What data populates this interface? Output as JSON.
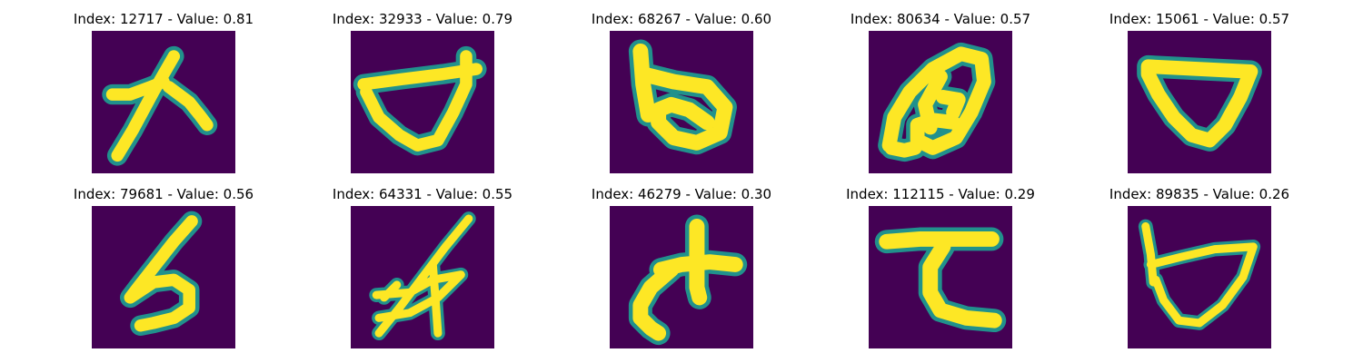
{
  "chart_data": {
    "type": "image_grid",
    "colormap": "viridis",
    "colors": {
      "background": "#440154",
      "stroke_edge": "#21918c",
      "stroke_core": "#fde725"
    },
    "grid": {
      "rows": 2,
      "columns": 5
    },
    "panels": [
      {
        "title": "Index: 12717 - Value: 0.81",
        "index": 12717,
        "value": 0.81
      },
      {
        "title": "Index: 32933 - Value: 0.79",
        "index": 32933,
        "value": 0.79
      },
      {
        "title": "Index: 68267 - Value: 0.60",
        "index": 68267,
        "value": 0.6
      },
      {
        "title": "Index: 80634 - Value: 0.57",
        "index": 80634,
        "value": 0.57
      },
      {
        "title": "Index: 15061 - Value: 0.57",
        "index": 15061,
        "value": 0.57
      },
      {
        "title": "Index: 79681 - Value: 0.56",
        "index": 79681,
        "value": 0.56
      },
      {
        "title": "Index: 64331 - Value: 0.55",
        "index": 64331,
        "value": 0.55
      },
      {
        "title": "Index: 46279 - Value: 0.30",
        "index": 46279,
        "value": 0.3
      },
      {
        "title": "Index: 112115 - Value: 0.29",
        "index": 112115,
        "value": 0.29
      },
      {
        "title": "Index: 89835 - Value: 0.26",
        "index": 89835,
        "value": 0.26
      }
    ]
  }
}
